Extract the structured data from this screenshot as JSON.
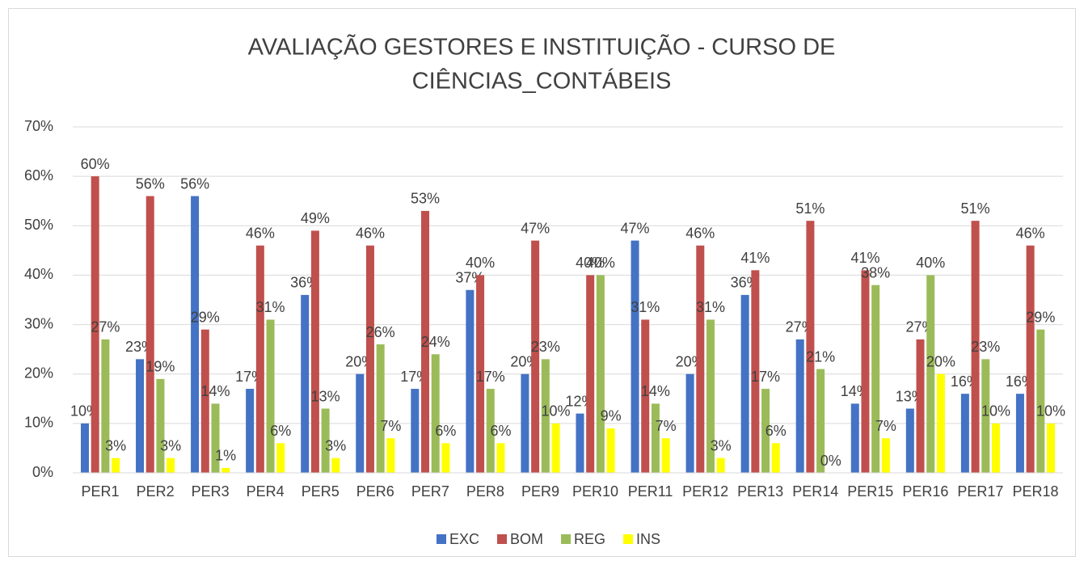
{
  "chart_data": {
    "type": "bar",
    "title": [
      "AVALIAÇÃO GESTORES E INSTITUIÇÃO - CURSO DE",
      "CIÊNCIAS_CONTÁBEIS"
    ],
    "categories": [
      "PER1",
      "PER2",
      "PER3",
      "PER4",
      "PER5",
      "PER6",
      "PER7",
      "PER8",
      "PER9",
      "PER10",
      "PER11",
      "PER12",
      "PER13",
      "PER14",
      "PER15",
      "PER16",
      "PER17",
      "PER18"
    ],
    "series": [
      {
        "name": "EXC",
        "color": "#4472c4",
        "values": [
          10,
          23,
          56,
          17,
          36,
          20,
          17,
          37,
          20,
          12,
          47,
          20,
          36,
          27,
          14,
          13,
          16,
          16
        ],
        "value_labels": [
          "10%",
          "23%",
          "56%",
          "17%",
          "36%",
          "20%",
          "17%",
          "37%",
          "20%",
          "12%",
          "47%",
          "20%",
          "36%",
          "27%",
          "14%",
          "13%",
          "16%",
          "16%"
        ]
      },
      {
        "name": "BOM",
        "color": "#c0504d",
        "values": [
          60,
          56,
          29,
          46,
          49,
          46,
          53,
          40,
          47,
          40,
          31,
          46,
          41,
          51,
          41,
          27,
          51,
          46
        ],
        "value_labels": [
          "60%",
          "56%",
          "29%",
          "46%",
          "49%",
          "46%",
          "53%",
          "40%",
          "47%",
          "40%",
          "31%",
          "46%",
          "41%",
          "51%",
          "41%",
          "27%",
          "51%",
          "46%"
        ]
      },
      {
        "name": "REG",
        "color": "#9bbb59",
        "values": [
          27,
          19,
          14,
          31,
          13,
          26,
          24,
          17,
          23,
          40,
          14,
          31,
          17,
          21,
          38,
          40,
          23,
          29
        ],
        "value_labels": [
          "27%",
          "19%",
          "14%",
          "31%",
          "13%",
          "26%",
          "24%",
          "17%",
          "23%",
          "40%",
          "14%",
          "31%",
          "17%",
          "21%",
          "38%",
          "40%",
          "23%",
          "29%"
        ]
      },
      {
        "name": "INS",
        "color": "#ffff00",
        "values": [
          3,
          3,
          1,
          6,
          3,
          7,
          6,
          6,
          10,
          9,
          7,
          3,
          6,
          0,
          7,
          20,
          10,
          10
        ],
        "value_labels": [
          "3%",
          "3%",
          "1%",
          "6%",
          "3%",
          "7%",
          "6%",
          "6%",
          "10%",
          "9%",
          "7%",
          "3%",
          "6%",
          "0%",
          "7%",
          "20%",
          "10%",
          "10%"
        ]
      }
    ],
    "ylim": [
      0,
      70
    ],
    "yticks": [
      {
        "value": 0,
        "label": "0%"
      },
      {
        "value": 10,
        "label": "10%"
      },
      {
        "value": 20,
        "label": "20%"
      },
      {
        "value": 30,
        "label": "30%"
      },
      {
        "value": 40,
        "label": "40%"
      },
      {
        "value": 50,
        "label": "50%"
      },
      {
        "value": 60,
        "label": "60%"
      },
      {
        "value": 70,
        "label": "70%"
      }
    ],
    "grid": true,
    "legend": "bottom"
  }
}
